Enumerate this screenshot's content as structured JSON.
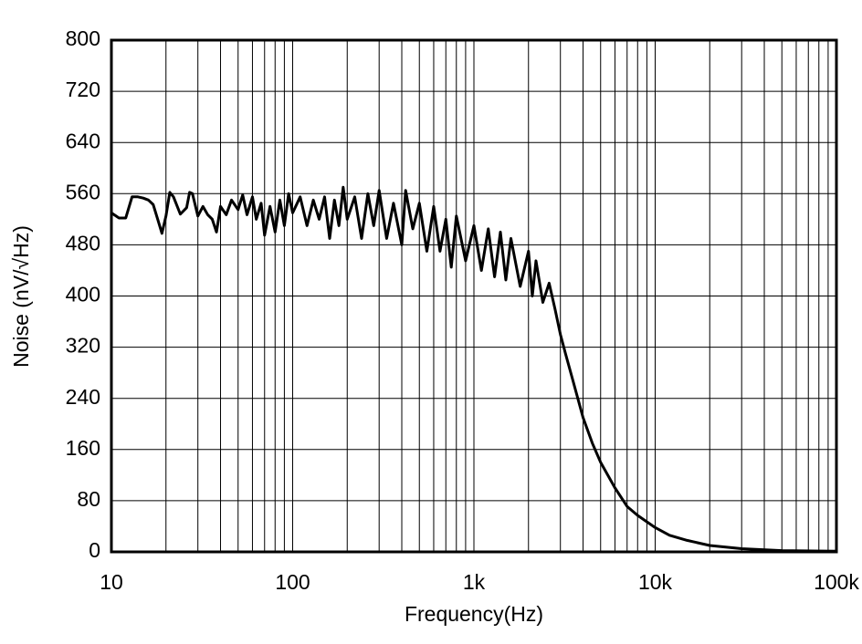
{
  "chart_data": {
    "type": "line",
    "x_label": "Frequency(Hz)",
    "y_label": "Noise (nV/√Hz)",
    "x_scale": "log",
    "xlim": [
      10,
      100000
    ],
    "xticks": [
      10,
      100,
      {
        "value": 1000,
        "label": "1k"
      },
      {
        "value": 10000,
        "label": "10k"
      },
      {
        "value": 100000,
        "label": "100k"
      }
    ],
    "x_minor_ticks": [
      20,
      30,
      40,
      50,
      60,
      70,
      80,
      90,
      200,
      300,
      400,
      500,
      600,
      700,
      800,
      900,
      2000,
      3000,
      4000,
      5000,
      6000,
      7000,
      8000,
      9000,
      20000,
      30000,
      40000,
      50000,
      60000,
      70000,
      80000,
      90000
    ],
    "ylim": [
      0,
      800
    ],
    "yticks": [
      0,
      80,
      160,
      240,
      320,
      400,
      480,
      560,
      640,
      720,
      800
    ],
    "grid": true,
    "series": [
      {
        "color": "#000000",
        "x": [
          10,
          11,
          12,
          13,
          14,
          15,
          16,
          17,
          18,
          19,
          20,
          21,
          22,
          24,
          26,
          27,
          28,
          30,
          32,
          34,
          36,
          38,
          40,
          43,
          46,
          50,
          53,
          56,
          60,
          63,
          67,
          70,
          75,
          80,
          85,
          90,
          95,
          100,
          110,
          120,
          130,
          140,
          150,
          160,
          170,
          180,
          190,
          200,
          220,
          240,
          260,
          280,
          300,
          330,
          360,
          400,
          420,
          460,
          500,
          550,
          600,
          650,
          700,
          750,
          800,
          900,
          1000,
          1100,
          1200,
          1300,
          1400,
          1500,
          1600,
          1800,
          2000,
          2100,
          2200,
          2400,
          2600,
          2800,
          3000,
          3200,
          3500,
          4000,
          4500,
          5000,
          6000,
          7000,
          8000,
          10000,
          12000,
          15000,
          20000,
          30000,
          50000,
          100000
        ],
        "values": [
          530,
          522,
          522,
          555,
          555,
          553,
          550,
          543,
          520,
          498,
          525,
          562,
          555,
          528,
          538,
          562,
          560,
          525,
          540,
          527,
          520,
          500,
          540,
          527,
          550,
          535,
          558,
          527,
          555,
          520,
          545,
          495,
          540,
          500,
          550,
          510,
          560,
          530,
          555,
          510,
          550,
          520,
          555,
          490,
          550,
          510,
          570,
          520,
          555,
          490,
          560,
          510,
          565,
          490,
          545,
          480,
          565,
          505,
          545,
          470,
          540,
          470,
          520,
          445,
          525,
          455,
          510,
          440,
          505,
          430,
          500,
          425,
          490,
          415,
          470,
          400,
          455,
          390,
          420,
          380,
          340,
          310,
          270,
          210,
          170,
          140,
          100,
          71,
          57,
          38,
          26,
          18,
          10,
          5,
          2,
          1
        ]
      }
    ]
  }
}
